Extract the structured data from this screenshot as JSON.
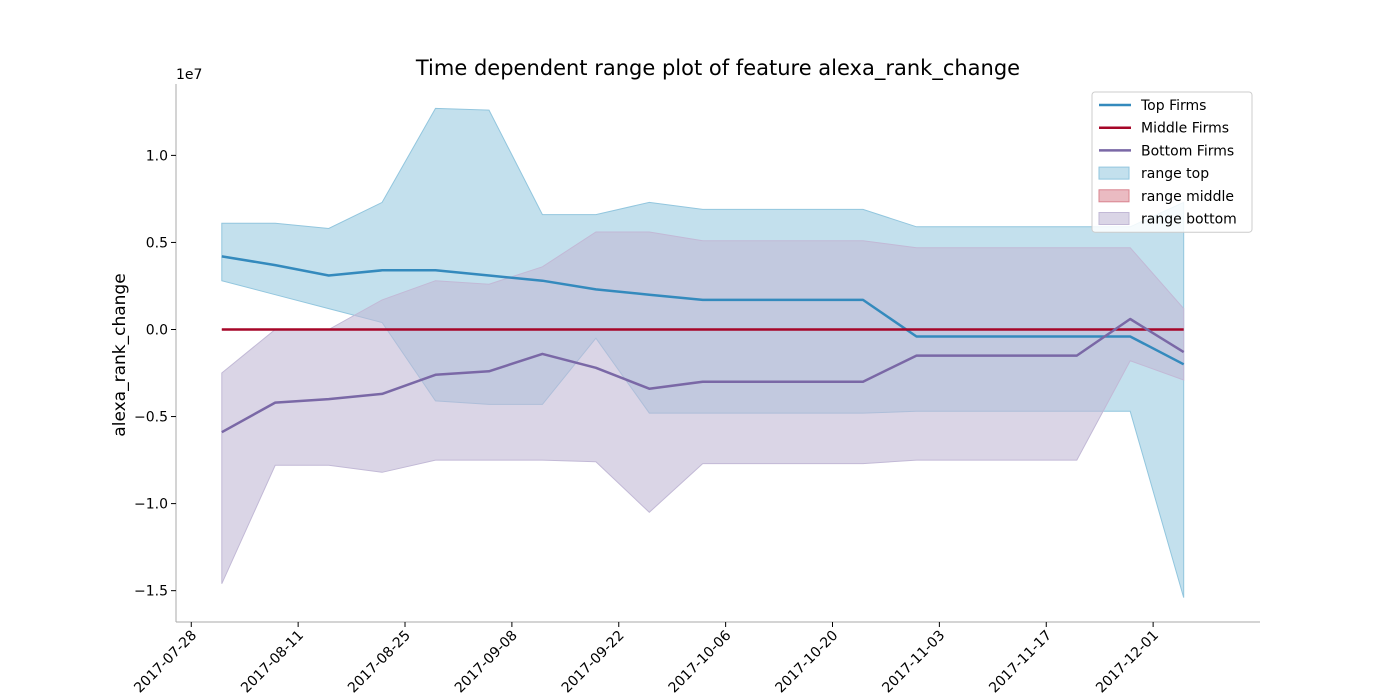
{
  "chart_data": {
    "type": "line",
    "title": "Time dependent range plot of feature alexa_rank_change",
    "xlabel": "",
    "ylabel": "alexa_rank_change",
    "y_multiplier_label": "1e7",
    "ylim": [
      -1.68,
      1.41
    ],
    "xlim": [
      "2017-07-26",
      "2017-12-15"
    ],
    "grid": false,
    "legend_position": "top-right",
    "x_tick_labels": [
      "2017-07-28",
      "2017-08-11",
      "2017-08-25",
      "2017-09-08",
      "2017-09-22",
      "2017-10-06",
      "2017-10-20",
      "2017-11-03",
      "2017-11-17",
      "2017-12-01"
    ],
    "y_ticks": [
      1.0,
      0.5,
      0.0,
      -0.5,
      -1.0,
      -1.5
    ],
    "y_tick_labels": [
      "1.0",
      "0.5",
      "0.0",
      "−0.5",
      "−1.0",
      "−1.5"
    ],
    "x": [
      "2017-08-01",
      "2017-08-08",
      "2017-08-15",
      "2017-08-22",
      "2017-08-29",
      "2017-09-05",
      "2017-09-12",
      "2017-09-19",
      "2017-09-26",
      "2017-10-03",
      "2017-10-10",
      "2017-10-17",
      "2017-10-24",
      "2017-10-31",
      "2017-11-07",
      "2017-11-14",
      "2017-11-21",
      "2017-11-28",
      "2017-12-05"
    ],
    "series": [
      {
        "name": "Top Firms",
        "color": "#348abd",
        "values": [
          0.42,
          0.37,
          0.31,
          0.34,
          0.34,
          0.31,
          0.28,
          0.23,
          0.2,
          0.17,
          0.17,
          0.17,
          0.17,
          -0.04,
          -0.04,
          -0.04,
          -0.04,
          -0.04,
          -0.2
        ]
      },
      {
        "name": "Middle Firms",
        "color": "#a60628",
        "values": [
          0.0,
          0.0,
          0.0,
          0.0,
          0.0,
          0.0,
          0.0,
          0.0,
          0.0,
          0.0,
          0.0,
          0.0,
          0.0,
          0.0,
          0.0,
          0.0,
          0.0,
          0.0,
          0.0
        ]
      },
      {
        "name": "Bottom Firms",
        "color": "#7a68a6",
        "values": [
          -0.59,
          -0.42,
          -0.4,
          -0.37,
          -0.26,
          -0.24,
          -0.14,
          -0.22,
          -0.34,
          -0.3,
          -0.3,
          -0.3,
          -0.3,
          -0.15,
          -0.15,
          -0.15,
          -0.15,
          0.06,
          -0.13
        ]
      }
    ],
    "ranges": [
      {
        "name": "range top",
        "color": "#92c6de",
        "opacity": 0.55,
        "upper": [
          0.61,
          0.61,
          0.58,
          0.73,
          1.27,
          1.26,
          0.66,
          0.66,
          0.73,
          0.69,
          0.69,
          0.69,
          0.69,
          0.59,
          0.59,
          0.59,
          0.59,
          0.59,
          0.73
        ],
        "lower": [
          0.28,
          0.2,
          0.12,
          0.04,
          -0.41,
          -0.43,
          -0.43,
          -0.05,
          -0.48,
          -0.48,
          -0.48,
          -0.48,
          -0.48,
          -0.47,
          -0.47,
          -0.47,
          -0.47,
          -0.47,
          -1.54
        ]
      },
      {
        "name": "range middle",
        "color": "#d9848f",
        "opacity": 0.55,
        "upper": [
          0.0,
          0.0,
          0.0,
          0.0,
          0.0,
          0.0,
          0.0,
          0.0,
          0.0,
          0.0,
          0.0,
          0.0,
          0.0,
          0.0,
          0.0,
          0.0,
          0.0,
          0.0,
          0.0
        ],
        "lower": [
          0.0,
          0.0,
          0.0,
          0.0,
          0.0,
          0.0,
          0.0,
          0.0,
          0.0,
          0.0,
          0.0,
          0.0,
          0.0,
          0.0,
          0.0,
          0.0,
          0.0,
          0.0,
          0.0
        ]
      },
      {
        "name": "range bottom",
        "color": "#c2b9d6",
        "opacity": 0.6,
        "upper": [
          -0.25,
          0.0,
          0.0,
          0.17,
          0.28,
          0.26,
          0.36,
          0.56,
          0.56,
          0.51,
          0.51,
          0.51,
          0.51,
          0.47,
          0.47,
          0.47,
          0.47,
          0.47,
          0.12
        ],
        "lower": [
          -1.46,
          -0.78,
          -0.78,
          -0.82,
          -0.75,
          -0.75,
          -0.75,
          -0.76,
          -1.05,
          -0.77,
          -0.77,
          -0.77,
          -0.77,
          -0.75,
          -0.75,
          -0.75,
          -0.75,
          -0.18,
          -0.29
        ]
      }
    ]
  }
}
